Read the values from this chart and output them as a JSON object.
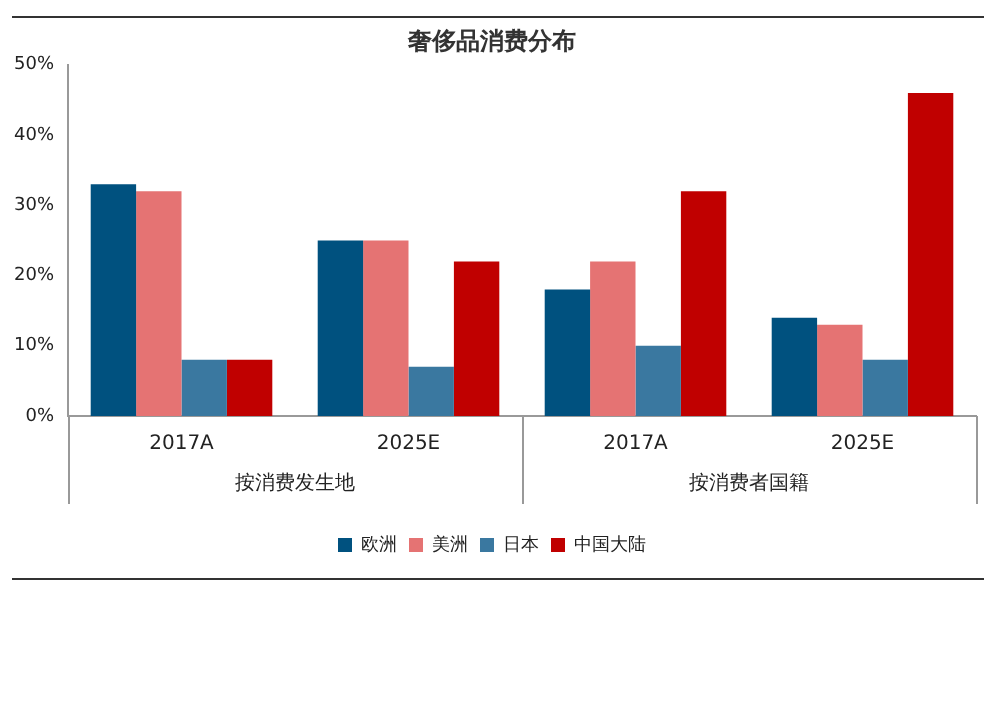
{
  "chart_data": {
    "type": "bar",
    "title": "奢侈品消费分布",
    "categories": [
      "2017A",
      "2025E",
      "2017A",
      "2025E"
    ],
    "series": [
      {
        "name": "欧洲",
        "color": "#00517f",
        "values": [
          33,
          25,
          18,
          14
        ]
      },
      {
        "name": "美洲",
        "color": "#e57373",
        "values": [
          32,
          25,
          22,
          13
        ]
      },
      {
        "name": "日本",
        "color": "#3a78a0",
        "values": [
          8,
          7,
          10,
          8
        ]
      },
      {
        "name": "中国大陆",
        "color": "#c00000",
        "values": [
          8,
          22,
          32,
          46
        ]
      }
    ],
    "ylim": [
      0,
      50
    ],
    "yticks": [
      {
        "value": 0,
        "label": "0%"
      },
      {
        "value": 10,
        "label": "10%"
      },
      {
        "value": 20,
        "label": "20%"
      },
      {
        "value": 30,
        "label": "30%"
      },
      {
        "value": 40,
        "label": "40%"
      },
      {
        "value": 50,
        "label": "50%"
      }
    ],
    "annotations": [
      "按消费发生地",
      "按消费者国籍"
    ],
    "grid": false,
    "legend": "bottom"
  }
}
